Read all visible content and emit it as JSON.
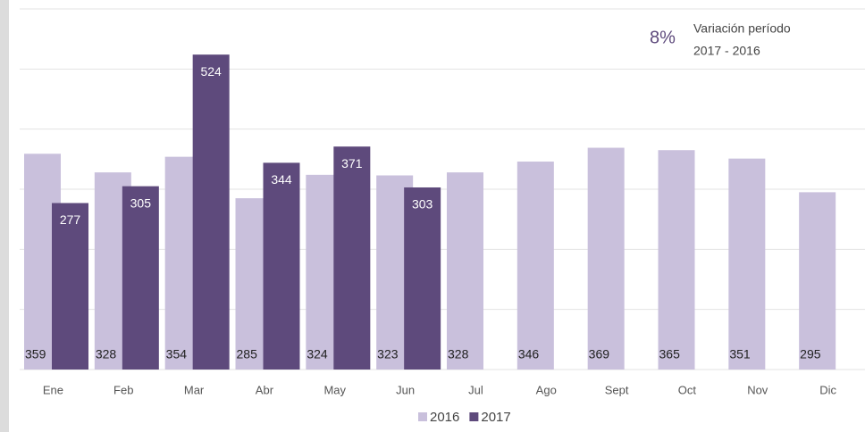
{
  "chart_data": {
    "type": "bar",
    "categories": [
      "Ene",
      "Feb",
      "Mar",
      "Abr",
      "May",
      "Jun",
      "Jul",
      "Ago",
      "Sept",
      "Oct",
      "Nov",
      "Dic"
    ],
    "series": [
      {
        "name": "2016",
        "color": "#c9c0dc",
        "values": [
          359,
          328,
          354,
          285,
          324,
          323,
          328,
          346,
          369,
          365,
          351,
          295
        ]
      },
      {
        "name": "2017",
        "color": "#5e4a7c",
        "values": [
          277,
          305,
          524,
          344,
          371,
          303,
          null,
          null,
          null,
          null,
          null,
          null
        ]
      }
    ],
    "ylim": [
      0,
      600
    ],
    "yticks": [
      0,
      100,
      200,
      300,
      400,
      500,
      600
    ],
    "grid": true,
    "annotation": {
      "text": "8%",
      "caption": [
        "Variación período",
        "2017 - 2016"
      ]
    },
    "legend": "bottom"
  }
}
